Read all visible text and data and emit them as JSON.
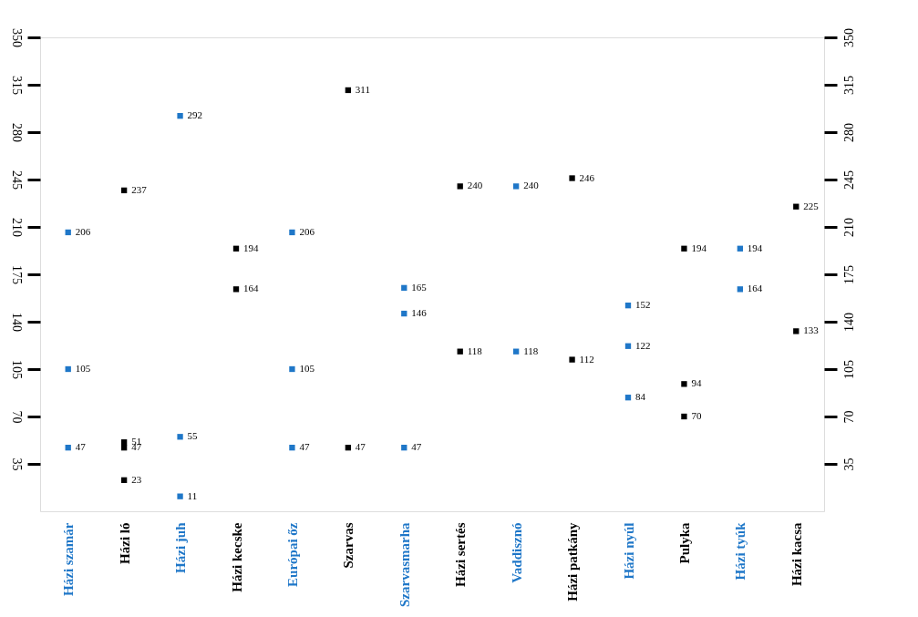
{
  "chart_data": {
    "type": "scatter",
    "categories": [
      "Házi szamár",
      "Házi ló",
      "Házi juh",
      "Házi kecske",
      "Európai őz",
      "Szarvas",
      "Szarvasmarha",
      "Házi sertés",
      "Vaddisznó",
      "Házi patkány",
      "Házi nyúl",
      "Pulyka",
      "Házi tyúk",
      "Házi kacsa"
    ],
    "series": [
      {
        "color": "#1f77c8",
        "x": [
          "Házi szamár",
          "Házi szamár",
          "Házi szamár",
          "Házi juh",
          "Házi juh",
          "Házi juh",
          "Európai őz",
          "Európai őz",
          "Európai őz",
          "Szarvasmarha",
          "Szarvasmarha",
          "Szarvasmarha",
          "Vaddisznó",
          "Vaddisznó",
          "Házi nyúl",
          "Házi nyúl",
          "Házi nyúl",
          "Házi tyúk",
          "Házi tyúk"
        ],
        "values": [
          206,
          105,
          47,
          292,
          55,
          11,
          206,
          105,
          47,
          165,
          146,
          47,
          240,
          118,
          152,
          122,
          84,
          194,
          164
        ]
      },
      {
        "color": "#000000",
        "x": [
          "Házi ló",
          "Házi ló",
          "Házi ló",
          "Házi ló",
          "Házi kecske",
          "Házi kecske",
          "Szarvas",
          "Szarvas",
          "Házi sertés",
          "Házi sertés",
          "Házi patkány",
          "Házi patkány",
          "Pulyka",
          "Pulyka",
          "Pulyka",
          "Házi kacsa",
          "Házi kacsa"
        ],
        "values": [
          237,
          51,
          47,
          23,
          194,
          164,
          311,
          47,
          240,
          118,
          246,
          112,
          194,
          94,
          70,
          225,
          133
        ]
      }
    ],
    "ylim": [
      0,
      350
    ],
    "yticks": [
      35,
      70,
      105,
      140,
      175,
      210,
      245,
      280,
      315,
      350
    ],
    "y2lim": [
      0,
      350
    ],
    "y2ticks": [
      35,
      70,
      105,
      140,
      175,
      210,
      245,
      280,
      315,
      350
    ],
    "data_labels": true,
    "grid": false,
    "legend": false,
    "marker": "square"
  }
}
